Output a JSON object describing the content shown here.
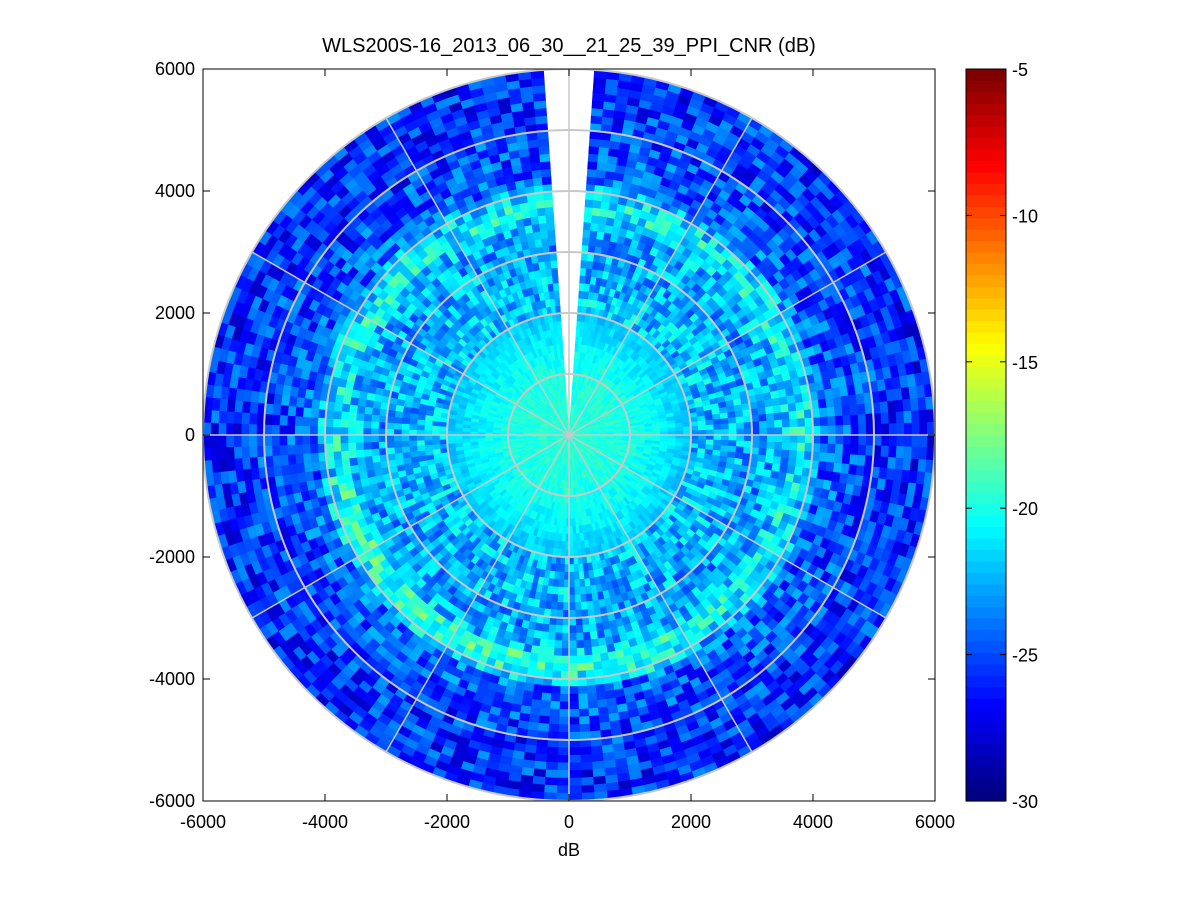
{
  "chart_data": {
    "type": "heatmap",
    "subtype": "polar-ppi-scan",
    "title": "WLS200S-16_2013_06_30__21_25_39_PPI_CNR (dB)",
    "xlabel": "dB",
    "ylabel": "",
    "xlim": [
      -6000,
      6000
    ],
    "ylim": [
      -6000,
      6000
    ],
    "xticks": [
      "-6000",
      "-4000",
      "-2000",
      "0",
      "2000",
      "4000",
      "6000"
    ],
    "yticks": [
      "6000",
      "4000",
      "2000",
      "0",
      "-2000",
      "-4000",
      "-6000"
    ],
    "max_range": 6000,
    "range_rings": [
      1000,
      2000,
      3000,
      4000,
      5000
    ],
    "spoke_step_deg": 30,
    "blind_sector_deg": [
      -4,
      4
    ],
    "colorbar": {
      "colormap": "jet",
      "range": [
        -30,
        -5
      ],
      "ticks": [
        "-5",
        "-10",
        "-15",
        "-20",
        "-25",
        "-30"
      ]
    },
    "profile": {
      "description_free": true,
      "range_m": [
        0,
        1000,
        1500,
        2000,
        2800,
        3200,
        3800,
        4200,
        5000,
        6000
      ],
      "cnr_db": [
        -19.5,
        -20.0,
        -20.8,
        -22.0,
        -22.5,
        -23.0,
        -21.5,
        -24.5,
        -25.5,
        -26.0
      ]
    }
  }
}
